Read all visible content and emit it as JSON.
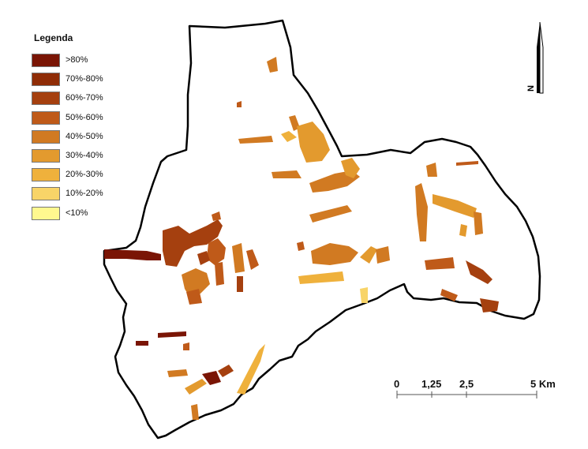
{
  "legend": {
    "title": "Legenda",
    "classes": [
      {
        "label": ">80%",
        "color": "#7a1505"
      },
      {
        "label": "70%-80%",
        "color": "#8f2c06"
      },
      {
        "label": "60%-70%",
        "color": "#a5400f"
      },
      {
        "label": "50%-60%",
        "color": "#bf5a19"
      },
      {
        "label": "40%-50%",
        "color": "#d17a22"
      },
      {
        "label": "30%-40%",
        "color": "#e39a2e"
      },
      {
        "label": "20%-30%",
        "color": "#efb13c"
      },
      {
        "label": "10%-20%",
        "color": "#f8d468"
      },
      {
        "label": "<10%",
        "color": "#fff88f"
      }
    ]
  },
  "north_arrow": {
    "label": "N"
  },
  "scale_bar": {
    "ticks": [
      "0",
      "1,25",
      "2,5",
      "5 Km"
    ]
  }
}
